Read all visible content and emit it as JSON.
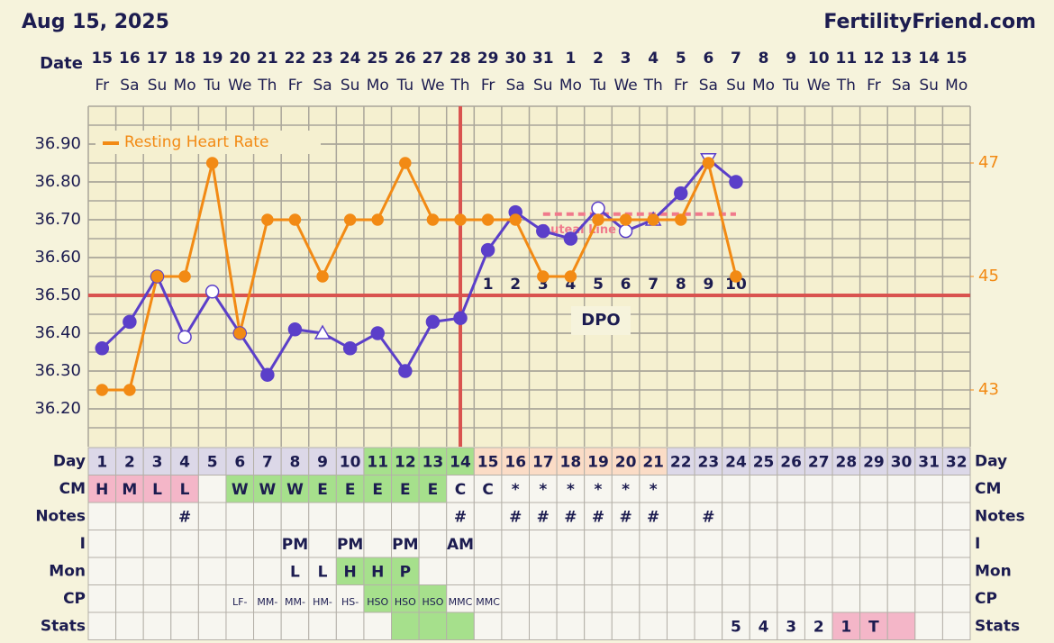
{
  "header": {
    "title": "Aug 15, 2025",
    "site": "FertilityFriend.com",
    "date_label": "Date",
    "dates": [
      15,
      16,
      17,
      18,
      19,
      20,
      21,
      22,
      23,
      24,
      25,
      26,
      27,
      28,
      29,
      30,
      31,
      1,
      2,
      3,
      4,
      5,
      6,
      7,
      8,
      9,
      10,
      11,
      12,
      13,
      14,
      15
    ],
    "weekdays": [
      "Fr",
      "Sa",
      "Su",
      "Mo",
      "Tu",
      "We",
      "Th",
      "Fr",
      "Sa",
      "Su",
      "Mo",
      "Tu",
      "We",
      "Th",
      "Fr",
      "Sa",
      "Su",
      "Mo",
      "Tu",
      "We",
      "Th",
      "Fr",
      "Sa",
      "Su",
      "Mo",
      "Tu",
      "We",
      "Th",
      "Fr",
      "Sa",
      "Su",
      "Mo"
    ]
  },
  "chart_data": {
    "type": "line",
    "categories": [
      1,
      2,
      3,
      4,
      5,
      6,
      7,
      8,
      9,
      10,
      11,
      12,
      13,
      14,
      15,
      16,
      17,
      18,
      19,
      20,
      21,
      22,
      23,
      24,
      25,
      26,
      27,
      28,
      29,
      30,
      31,
      32
    ],
    "ylim": [
      36.1,
      37.0
    ],
    "yticks": [
      {
        "value": 36.2,
        "label": "36.20"
      },
      {
        "value": 36.3,
        "label": "36.30"
      },
      {
        "value": 36.4,
        "label": "36.40"
      },
      {
        "value": 36.5,
        "label": "36.50"
      },
      {
        "value": 36.6,
        "label": "36.60"
      },
      {
        "value": 36.7,
        "label": "36.70"
      },
      {
        "value": 36.8,
        "label": "36.80"
      },
      {
        "value": 36.9,
        "label": "36.90"
      }
    ],
    "y2lim": [
      42,
      48
    ],
    "y2ticks": [
      43,
      45,
      47
    ],
    "grid": true,
    "series": [
      {
        "color": "#5b3fc9",
        "values": [
          36.36,
          36.43,
          36.55,
          36.39,
          36.51,
          36.4,
          36.29,
          36.41,
          36.4,
          36.36,
          36.4,
          36.3,
          36.43,
          36.44,
          36.62,
          36.72,
          36.67,
          36.65,
          36.73,
          36.67,
          36.7,
          36.77,
          36.86,
          36.8,
          null,
          null,
          null,
          null,
          null,
          null,
          null,
          null
        ],
        "markers": [
          "filled",
          "filled",
          "open",
          "open",
          "open",
          "filled",
          "filled",
          "filled",
          "triangle",
          "filled",
          "filled",
          "filled",
          "filled",
          "filled",
          "filled",
          "filled",
          "filled",
          "filled",
          "open",
          "open",
          "triangle",
          "filled",
          "inverted-triangle",
          "filled",
          null,
          null,
          null,
          null,
          null,
          null,
          null,
          null
        ]
      },
      {
        "name": "Resting Heart Rate",
        "color": "#f28a14",
        "axis": "y2",
        "values": [
          43,
          43,
          45,
          45,
          47,
          44,
          46,
          46,
          45,
          46,
          46,
          47,
          46,
          46,
          46,
          46,
          45,
          45,
          46,
          46,
          46,
          46,
          47,
          45,
          null,
          null,
          null,
          null,
          null,
          null,
          null,
          null
        ]
      }
    ],
    "legend": "top-left",
    "coverline": 36.5,
    "coverline_color": "#d9534f",
    "ovulation_day": 14,
    "luteal_line": {
      "label": "Luteal Line",
      "color": "#f07a8c",
      "values": [
        null,
        null,
        null,
        null,
        null,
        null,
        null,
        null,
        null,
        null,
        null,
        null,
        null,
        null,
        null,
        null,
        36.715,
        36.715,
        36.715,
        36.715,
        36.715,
        36.715,
        36.715,
        36.715,
        null,
        null,
        null,
        null,
        null,
        null,
        null,
        null
      ]
    },
    "dpo_label": "DPO",
    "dpo": [
      null,
      null,
      null,
      null,
      null,
      null,
      null,
      null,
      null,
      null,
      null,
      null,
      null,
      null,
      1,
      2,
      3,
      4,
      5,
      6,
      7,
      8,
      9,
      10,
      null,
      null,
      null,
      null,
      null,
      null,
      null,
      null
    ]
  },
  "table": {
    "rows": [
      {
        "label": "Day",
        "cells": [
          "1",
          "2",
          "3",
          "4",
          "5",
          "6",
          "7",
          "8",
          "9",
          "10",
          "11",
          "12",
          "13",
          "14",
          "15",
          "16",
          "17",
          "18",
          "19",
          "20",
          "21",
          "22",
          "23",
          "24",
          "25",
          "26",
          "27",
          "28",
          "29",
          "30",
          "31",
          "32"
        ],
        "colors": [
          "#dcd8e8",
          "#dcd8e8",
          "#dcd8e8",
          "#dcd8e8",
          "#dcd8e8",
          "#dcd8e8",
          "#dcd8e8",
          "#dcd8e8",
          "#dcd8e8",
          "#dcd8e8",
          "#a6e08c",
          "#a6e08c",
          "#a6e08c",
          "#a6e08c",
          "#fbdcc6",
          "#fbdcc6",
          "#fbdcc6",
          "#fbdcc6",
          "#fbdcc6",
          "#fbdcc6",
          "#fbdcc6",
          "#dcd8e8",
          "#dcd8e8",
          "#dcd8e8",
          "#dcd8e8",
          "#dcd8e8",
          "#dcd8e8",
          "#dcd8e8",
          "#dcd8e8",
          "#dcd8e8",
          "#dcd8e8",
          "#dcd8e8"
        ]
      },
      {
        "label": "CM",
        "cells": [
          "H",
          "M",
          "L",
          "L",
          null,
          "W",
          "W",
          "W",
          "E",
          "E",
          "E",
          "E",
          "E",
          "C",
          "C",
          "*",
          "*",
          "*",
          "*",
          "*",
          "*",
          null,
          null,
          null,
          null,
          null,
          null,
          null,
          null,
          null,
          null,
          null
        ],
        "colors": [
          "#f4b6c8",
          "#f4b6c8",
          "#f4b6c8",
          "#f4b6c8",
          null,
          "#a6e08c",
          "#a6e08c",
          "#a6e08c",
          "#a6e08c",
          "#a6e08c",
          "#a6e08c",
          "#a6e08c",
          "#a6e08c",
          null,
          null,
          null,
          null,
          null,
          null,
          null,
          null,
          null,
          null,
          null,
          null,
          null,
          null,
          null,
          null,
          null,
          null,
          null
        ]
      },
      {
        "label": "Notes",
        "cells": [
          null,
          null,
          null,
          "#",
          null,
          null,
          null,
          null,
          null,
          null,
          null,
          null,
          null,
          "#",
          null,
          "#",
          "#",
          "#",
          "#",
          "#",
          "#",
          null,
          "#",
          null,
          null,
          null,
          null,
          null,
          null,
          null,
          null,
          null
        ]
      },
      {
        "label": "I",
        "cells": [
          null,
          null,
          null,
          null,
          null,
          null,
          null,
          "PM",
          null,
          "PM",
          null,
          "PM",
          null,
          "AM",
          null,
          null,
          null,
          null,
          null,
          null,
          null,
          null,
          null,
          null,
          null,
          null,
          null,
          null,
          null,
          null,
          null,
          null
        ]
      },
      {
        "label": "Mon",
        "cells": [
          null,
          null,
          null,
          null,
          null,
          null,
          null,
          "L",
          "L",
          "H",
          "H",
          "P",
          null,
          null,
          null,
          null,
          null,
          null,
          null,
          null,
          null,
          null,
          null,
          null,
          null,
          null,
          null,
          null,
          null,
          null,
          null,
          null
        ],
        "colors": [
          null,
          null,
          null,
          null,
          null,
          null,
          null,
          null,
          null,
          "#a6e08c",
          "#a6e08c",
          "#a6e08c",
          null,
          null,
          null,
          null,
          null,
          null,
          null,
          null,
          null,
          null,
          null,
          null,
          null,
          null,
          null,
          null,
          null,
          null,
          null,
          null
        ]
      },
      {
        "label": "CP",
        "cells": [
          null,
          null,
          null,
          null,
          null,
          "LF-",
          "MM-",
          "MM-",
          "HM-",
          "HS-",
          "HSO",
          "HSO",
          "HSO",
          "MMC",
          "MMC",
          null,
          null,
          null,
          null,
          null,
          null,
          null,
          null,
          null,
          null,
          null,
          null,
          null,
          null,
          null,
          null,
          null
        ],
        "colors": [
          null,
          null,
          null,
          null,
          null,
          null,
          null,
          null,
          null,
          null,
          "#a6e08c",
          "#a6e08c",
          "#a6e08c",
          null,
          null,
          null,
          null,
          null,
          null,
          null,
          null,
          null,
          null,
          null,
          null,
          null,
          null,
          null,
          null,
          null,
          null,
          null
        ]
      },
      {
        "label": "Stats",
        "cells": [
          null,
          null,
          null,
          null,
          null,
          null,
          null,
          null,
          null,
          null,
          null,
          null,
          null,
          null,
          null,
          null,
          null,
          null,
          null,
          null,
          null,
          null,
          null,
          "5",
          "4",
          "3",
          "2",
          "1",
          "T",
          null,
          null,
          null
        ],
        "colors": [
          null,
          null,
          null,
          null,
          null,
          null,
          null,
          null,
          null,
          null,
          null,
          "#a6e08c",
          "#a6e08c",
          "#a6e08c",
          null,
          null,
          null,
          null,
          null,
          null,
          null,
          null,
          null,
          null,
          null,
          null,
          null,
          "#f4b6c8",
          "#f4b6c8",
          "#f4b6c8",
          null,
          null
        ]
      }
    ]
  }
}
